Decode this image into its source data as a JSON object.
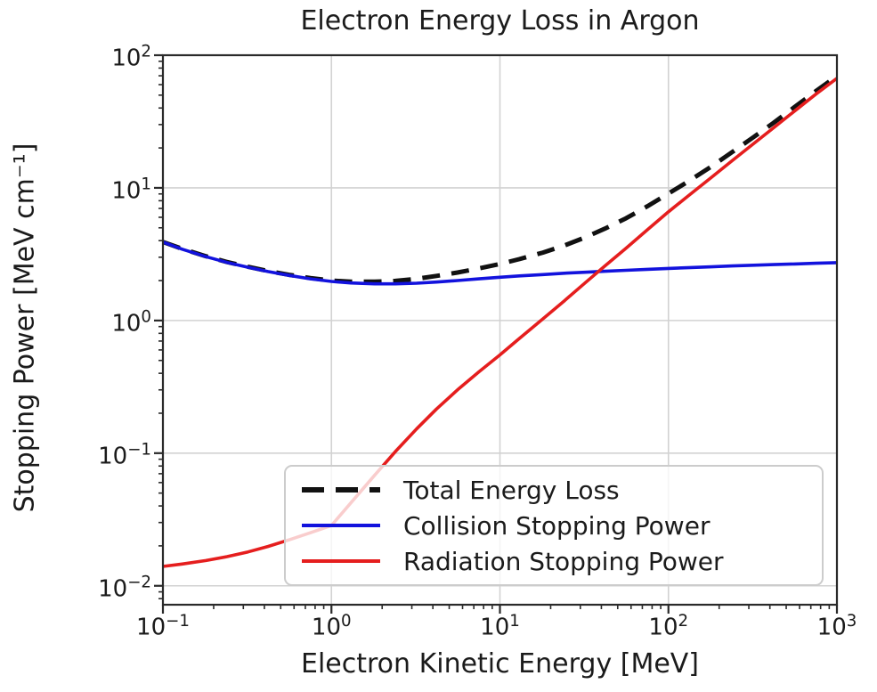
{
  "chart_data": {
    "type": "line",
    "title": "Electron Energy Loss in Argon",
    "xlabel": "Electron Kinetic Energy [MeV]",
    "ylabel": "Stopping Power [MeV cm⁻¹]",
    "xscale": "log",
    "yscale": "log",
    "xlim": [
      0.1,
      1000
    ],
    "ylim": [
      0.0072,
      100
    ],
    "x_tick_exponents": [
      -1,
      0,
      1,
      2,
      3
    ],
    "y_tick_exponents": [
      2,
      1,
      0,
      -1,
      -2
    ],
    "grid": true,
    "legend_position": "lower right inside",
    "x": [
      0.1,
      0.13,
      0.18,
      0.24,
      0.32,
      0.42,
      0.56,
      0.75,
      1.0,
      1.3,
      1.8,
      2.4,
      3.2,
      4.2,
      5.6,
      7.5,
      10,
      13,
      18,
      24,
      32,
      42,
      56,
      75,
      100,
      130,
      180,
      240,
      320,
      420,
      560,
      750,
      1000
    ],
    "series": [
      {
        "name": "Total Energy Loss",
        "color": "#111111",
        "style": "dashed",
        "values": [
          3.91,
          3.47,
          3.05,
          2.76,
          2.54,
          2.36,
          2.21,
          2.09,
          2.0,
          1.96,
          1.96,
          1.99,
          2.06,
          2.17,
          2.3,
          2.47,
          2.67,
          2.9,
          3.25,
          3.67,
          4.23,
          4.93,
          5.9,
          7.26,
          9.07,
          11.1,
          14.5,
          18.7,
          24.1,
          30.9,
          40.6,
          53.6,
          69.7
        ]
      },
      {
        "name": "Collision Stopping Power",
        "color": "#1212dd",
        "style": "solid",
        "values": [
          3.9,
          3.45,
          3.03,
          2.74,
          2.52,
          2.34,
          2.19,
          2.06,
          1.97,
          1.92,
          1.89,
          1.89,
          1.91,
          1.95,
          2.0,
          2.06,
          2.12,
          2.17,
          2.22,
          2.27,
          2.31,
          2.35,
          2.39,
          2.43,
          2.47,
          2.5,
          2.54,
          2.58,
          2.61,
          2.64,
          2.67,
          2.7,
          2.73
        ]
      },
      {
        "name": "Radiation Stopping Power",
        "color": "#e51e1e",
        "style": "solid",
        "values": [
          0.014,
          0.0146,
          0.0155,
          0.0166,
          0.018,
          0.0198,
          0.0222,
          0.0251,
          0.0285,
          0.042,
          0.068,
          0.103,
          0.152,
          0.215,
          0.3,
          0.41,
          0.55,
          0.73,
          1.03,
          1.4,
          1.92,
          2.58,
          3.51,
          4.83,
          6.6,
          8.62,
          12.0,
          16.1,
          21.5,
          28.3,
          37.9,
          50.9,
          67.0
        ]
      }
    ]
  }
}
